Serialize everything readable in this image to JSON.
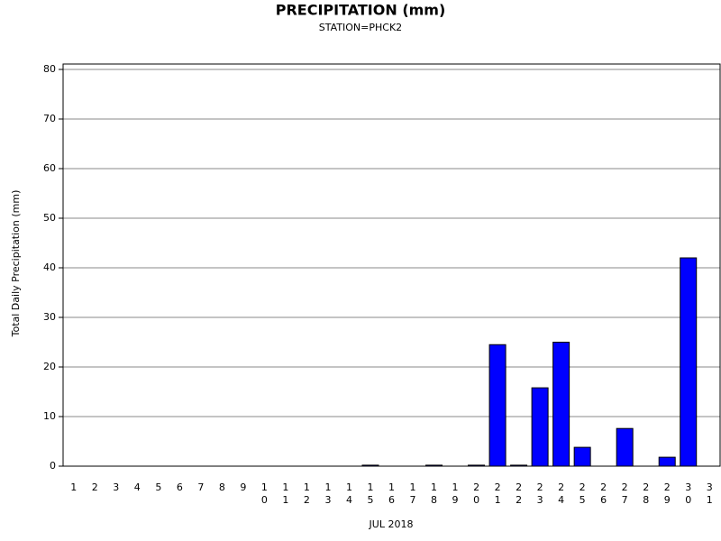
{
  "chart_data": {
    "type": "bar",
    "title": "PRECIPITATION (mm)",
    "subtitle": "STATION=PHCK2",
    "x_label": "JUL 2018",
    "y_label": "Total Daily Precipitation (mm)",
    "categories": [
      "1",
      "2",
      "3",
      "4",
      "5",
      "6",
      "7",
      "8",
      "9",
      "10",
      "11",
      "12",
      "13",
      "14",
      "15",
      "16",
      "17",
      "18",
      "19",
      "20",
      "21",
      "22",
      "23",
      "24",
      "25",
      "26",
      "27",
      "28",
      "29",
      "30",
      "31"
    ],
    "values": [
      0,
      0,
      0,
      0,
      0,
      0,
      0,
      0,
      0,
      0,
      0,
      0,
      0,
      0,
      0.2,
      0,
      0,
      0.2,
      0,
      0.2,
      24.5,
      0.2,
      15.8,
      25,
      3.8,
      0,
      7.6,
      0,
      1.8,
      42,
      0
    ],
    "color": "#0000ff",
    "ylim": [
      0,
      80
    ],
    "yticks": [
      0,
      10,
      20,
      30,
      40,
      50,
      60,
      70,
      80
    ],
    "grid": true
  }
}
